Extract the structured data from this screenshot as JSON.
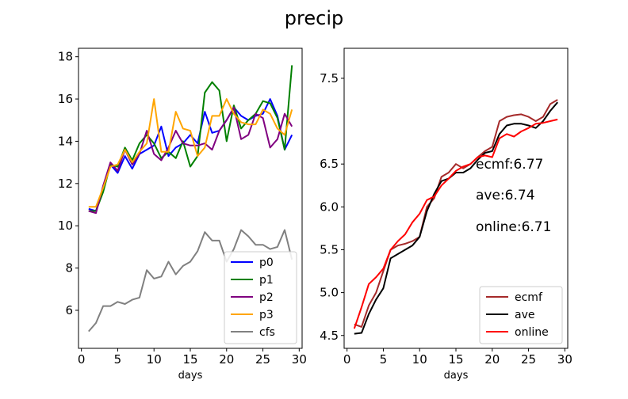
{
  "figure": {
    "title": "precip"
  },
  "chart_data": [
    {
      "type": "line",
      "xlabel": "days",
      "ylabel": "",
      "xlim": [
        -0.4,
        30.4
      ],
      "ylim": [
        4.2,
        18.4
      ],
      "xticks": [
        0,
        5,
        10,
        15,
        20,
        25,
        30
      ],
      "yticks": [
        6,
        8,
        10,
        12,
        14,
        16,
        18
      ],
      "legend": "bottom-right",
      "x": [
        1,
        2,
        3,
        4,
        5,
        6,
        7,
        8,
        9,
        10,
        11,
        12,
        13,
        14,
        15,
        16,
        17,
        18,
        19,
        20,
        21,
        22,
        23,
        24,
        25,
        26,
        27,
        28,
        29
      ],
      "series": [
        {
          "name": "p0",
          "color": "#0000ff",
          "values": [
            10.8,
            10.7,
            11.8,
            12.9,
            12.5,
            13.3,
            12.7,
            13.4,
            13.6,
            13.8,
            14.7,
            13.3,
            13.7,
            13.9,
            14.3,
            13.9,
            15.4,
            14.4,
            14.5,
            15.0,
            15.6,
            15.2,
            15.0,
            15.2,
            15.3,
            16.0,
            15.2,
            13.6,
            14.3
          ]
        },
        {
          "name": "p1",
          "color": "#008000",
          "values": [
            10.7,
            10.7,
            11.6,
            12.9,
            12.8,
            13.7,
            13.1,
            13.9,
            14.3,
            13.9,
            13.2,
            13.5,
            13.2,
            14.0,
            12.8,
            13.3,
            16.3,
            16.8,
            16.4,
            14.0,
            15.7,
            14.6,
            15.0,
            15.3,
            15.9,
            15.8,
            15.1,
            13.6,
            17.6
          ]
        },
        {
          "name": "p2",
          "color": "#800080",
          "values": [
            10.7,
            10.6,
            11.9,
            13.0,
            12.6,
            13.6,
            12.9,
            13.4,
            14.5,
            13.4,
            13.1,
            13.7,
            14.5,
            13.9,
            13.8,
            13.8,
            13.9,
            13.6,
            14.5,
            15.0,
            15.6,
            14.1,
            14.3,
            15.3,
            15.1,
            13.7,
            14.1,
            15.3,
            14.7
          ]
        },
        {
          "name": "p3",
          "color": "#ffa500",
          "values": [
            10.9,
            10.9,
            11.8,
            12.8,
            12.9,
            13.6,
            13.0,
            13.5,
            13.9,
            16.0,
            13.5,
            13.5,
            15.4,
            14.6,
            14.5,
            13.3,
            13.7,
            15.2,
            15.2,
            16.0,
            15.3,
            14.9,
            14.8,
            14.8,
            15.5,
            15.3,
            14.6,
            14.3,
            15.5
          ]
        },
        {
          "name": "cfs",
          "color": "#808080",
          "values": [
            5.0,
            5.4,
            6.2,
            6.2,
            6.4,
            6.3,
            6.5,
            6.6,
            7.9,
            7.5,
            7.6,
            8.3,
            7.7,
            8.1,
            8.3,
            8.8,
            9.7,
            9.3,
            9.3,
            8.3,
            8.9,
            9.8,
            9.5,
            9.1,
            9.1,
            8.9,
            9.0,
            9.8,
            8.4
          ]
        }
      ]
    },
    {
      "type": "line",
      "xlabel": "days",
      "ylabel": "",
      "xlim": [
        -0.4,
        30.4
      ],
      "ylim": [
        4.35,
        7.85
      ],
      "xticks": [
        0,
        5,
        10,
        15,
        20,
        25,
        30
      ],
      "yticks": [
        4.5,
        5.0,
        5.5,
        6.0,
        6.5,
        7.5
      ],
      "ytick_labels": [
        "4.5",
        "5.0",
        "5.5",
        "6.0",
        "6.5",
        "7.5"
      ],
      "legend": "bottom-right",
      "annotations": [
        "ecmf:6.77",
        "ave:6.74",
        "online:6.71"
      ],
      "x": [
        1,
        2,
        3,
        4,
        5,
        6,
        7,
        8,
        9,
        10,
        11,
        12,
        13,
        14,
        15,
        16,
        17,
        18,
        19,
        20,
        21,
        22,
        23,
        24,
        25,
        26,
        27,
        28,
        29
      ],
      "series": [
        {
          "name": "ecmf",
          "color": "#a52a2a",
          "values": [
            4.63,
            4.6,
            4.85,
            5.0,
            5.25,
            5.5,
            5.55,
            5.57,
            5.6,
            5.65,
            6.0,
            6.1,
            6.35,
            6.4,
            6.5,
            6.45,
            6.5,
            6.58,
            6.65,
            6.7,
            7.0,
            7.05,
            7.07,
            7.08,
            7.05,
            7.0,
            7.05,
            7.2,
            7.25
          ]
        },
        {
          "name": "ave",
          "color": "#000000",
          "values": [
            4.52,
            4.53,
            4.75,
            4.92,
            5.05,
            5.4,
            5.45,
            5.5,
            5.55,
            5.65,
            5.95,
            6.15,
            6.3,
            6.33,
            6.4,
            6.4,
            6.45,
            6.55,
            6.63,
            6.65,
            6.85,
            6.95,
            6.97,
            6.97,
            6.95,
            6.92,
            7.0,
            7.12,
            7.22
          ]
        },
        {
          "name": "online",
          "color": "#ff0000",
          "values": [
            4.58,
            4.83,
            5.1,
            5.18,
            5.28,
            5.5,
            5.6,
            5.68,
            5.82,
            5.92,
            6.08,
            6.12,
            6.25,
            6.33,
            6.42,
            6.47,
            6.5,
            6.58,
            6.6,
            6.58,
            6.8,
            6.85,
            6.82,
            6.88,
            6.92,
            6.97,
            6.98,
            7.0,
            7.02
          ]
        }
      ]
    }
  ]
}
